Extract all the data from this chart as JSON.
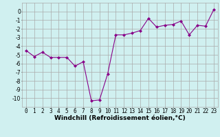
{
  "x": [
    0,
    1,
    2,
    3,
    4,
    5,
    6,
    7,
    8,
    9,
    10,
    11,
    12,
    13,
    14,
    15,
    16,
    17,
    18,
    19,
    20,
    21,
    22,
    23
  ],
  "y": [
    -4.5,
    -5.2,
    -4.7,
    -5.3,
    -5.3,
    -5.3,
    -6.3,
    -5.8,
    -10.3,
    -10.2,
    -7.2,
    -2.7,
    -2.7,
    -2.5,
    -2.2,
    -0.8,
    -1.8,
    -1.6,
    -1.5,
    -1.1,
    -2.7,
    -1.6,
    -1.7,
    0.2
  ],
  "line_color": "#880088",
  "marker": "D",
  "marker_size": 2,
  "bg_color": "#d0f0f0",
  "grid_color": "#aaaaaa",
  "xlabel": "Windchill (Refroidissement éolien,°C)",
  "ylim": [
    -11,
    1
  ],
  "xlim": [
    -0.5,
    23.5
  ],
  "yticks": [
    0,
    -1,
    -2,
    -3,
    -4,
    -5,
    -6,
    -7,
    -8,
    -9,
    -10
  ],
  "xticks": [
    0,
    1,
    2,
    3,
    4,
    5,
    6,
    7,
    8,
    9,
    10,
    11,
    12,
    13,
    14,
    15,
    16,
    17,
    18,
    19,
    20,
    21,
    22,
    23
  ],
  "label_fontsize": 6.5,
  "tick_fontsize": 5.5
}
